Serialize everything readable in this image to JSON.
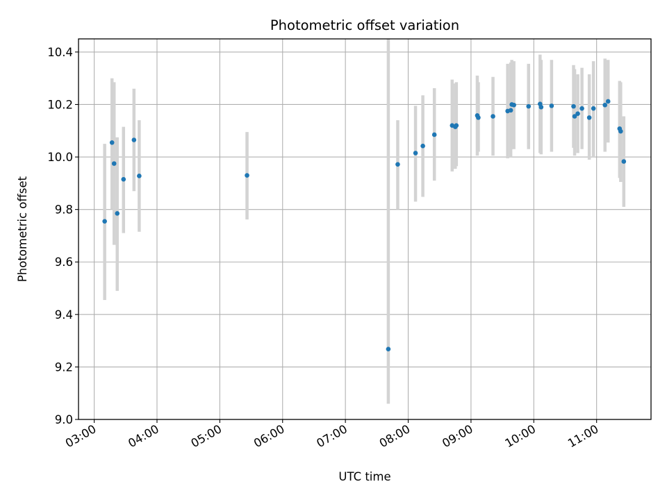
{
  "chart_data": {
    "type": "scatter",
    "title": "Photometric offset variation",
    "xlabel": "UTC time",
    "ylabel": "Photometric offset",
    "x_axis_type": "time",
    "xlim": [
      "02:45",
      "11:52"
    ],
    "ylim": [
      9.0,
      10.45
    ],
    "grid": true,
    "x_ticks": [
      "03:00",
      "04:00",
      "05:00",
      "06:00",
      "07:00",
      "08:00",
      "09:00",
      "10:00",
      "11:00"
    ],
    "y_ticks": [
      "9.0",
      "9.2",
      "9.4",
      "9.6",
      "9.8",
      "10.0",
      "10.2",
      "10.4"
    ],
    "marker_color": "#1f77b4",
    "errorbar_color": "#d3d3d3",
    "points": [
      {
        "t": "03:10",
        "y": 9.755,
        "lo": 9.455,
        "hi": 10.05
      },
      {
        "t": "03:17",
        "y": 10.055,
        "lo": 9.8,
        "hi": 10.3
      },
      {
        "t": "03:19",
        "y": 9.975,
        "lo": 9.665,
        "hi": 10.285
      },
      {
        "t": "03:22",
        "y": 9.785,
        "lo": 9.49,
        "hi": 10.075
      },
      {
        "t": "03:28",
        "y": 9.915,
        "lo": 9.71,
        "hi": 10.115
      },
      {
        "t": "03:38",
        "y": 10.065,
        "lo": 9.87,
        "hi": 10.26
      },
      {
        "t": "03:43",
        "y": 9.928,
        "lo": 9.715,
        "hi": 10.14
      },
      {
        "t": "05:26",
        "y": 9.93,
        "lo": 9.762,
        "hi": 10.095
      },
      {
        "t": "07:41",
        "y": 9.268,
        "lo": 9.06,
        "hi": 10.475
      },
      {
        "t": "07:50",
        "y": 9.972,
        "lo": 9.8,
        "hi": 10.14
      },
      {
        "t": "08:07",
        "y": 10.015,
        "lo": 9.83,
        "hi": 10.195
      },
      {
        "t": "08:14",
        "y": 10.042,
        "lo": 9.848,
        "hi": 10.235
      },
      {
        "t": "08:25",
        "y": 10.085,
        "lo": 9.91,
        "hi": 10.262
      },
      {
        "t": "08:42",
        "y": 10.12,
        "lo": 9.945,
        "hi": 10.295
      },
      {
        "t": "08:45",
        "y": 10.115,
        "lo": 9.955,
        "hi": 10.28
      },
      {
        "t": "08:46",
        "y": 10.12,
        "lo": 9.965,
        "hi": 10.285
      },
      {
        "t": "09:06",
        "y": 10.158,
        "lo": 10.005,
        "hi": 10.31
      },
      {
        "t": "09:07",
        "y": 10.15,
        "lo": 10.02,
        "hi": 10.285
      },
      {
        "t": "09:21",
        "y": 10.155,
        "lo": 10.005,
        "hi": 10.305
      },
      {
        "t": "09:35",
        "y": 10.175,
        "lo": 9.995,
        "hi": 10.355
      },
      {
        "t": "09:38",
        "y": 10.178,
        "lo": 10.0,
        "hi": 10.36
      },
      {
        "t": "09:39",
        "y": 10.2,
        "lo": 10.03,
        "hi": 10.37
      },
      {
        "t": "09:41",
        "y": 10.198,
        "lo": 10.03,
        "hi": 10.365
      },
      {
        "t": "09:55",
        "y": 10.193,
        "lo": 10.03,
        "hi": 10.355
      },
      {
        "t": "10:06",
        "y": 10.202,
        "lo": 10.015,
        "hi": 10.39
      },
      {
        "t": "10:07",
        "y": 10.19,
        "lo": 10.01,
        "hi": 10.37
      },
      {
        "t": "10:17",
        "y": 10.195,
        "lo": 10.02,
        "hi": 10.37
      },
      {
        "t": "10:38",
        "y": 10.193,
        "lo": 10.035,
        "hi": 10.35
      },
      {
        "t": "10:39",
        "y": 10.155,
        "lo": 10.005,
        "hi": 10.335
      },
      {
        "t": "10:42",
        "y": 10.165,
        "lo": 10.015,
        "hi": 10.315
      },
      {
        "t": "10:46",
        "y": 10.185,
        "lo": 10.03,
        "hi": 10.34
      },
      {
        "t": "10:53",
        "y": 10.15,
        "lo": 9.99,
        "hi": 10.315
      },
      {
        "t": "10:57",
        "y": 10.185,
        "lo": 10.0,
        "hi": 10.365
      },
      {
        "t": "11:08",
        "y": 10.198,
        "lo": 10.02,
        "hi": 10.375
      },
      {
        "t": "11:11",
        "y": 10.212,
        "lo": 10.055,
        "hi": 10.37
      },
      {
        "t": "11:22",
        "y": 10.108,
        "lo": 9.92,
        "hi": 10.29
      },
      {
        "t": "11:23",
        "y": 10.098,
        "lo": 9.905,
        "hi": 10.285
      },
      {
        "t": "11:26",
        "y": 9.983,
        "lo": 9.81,
        "hi": 10.155
      }
    ]
  }
}
